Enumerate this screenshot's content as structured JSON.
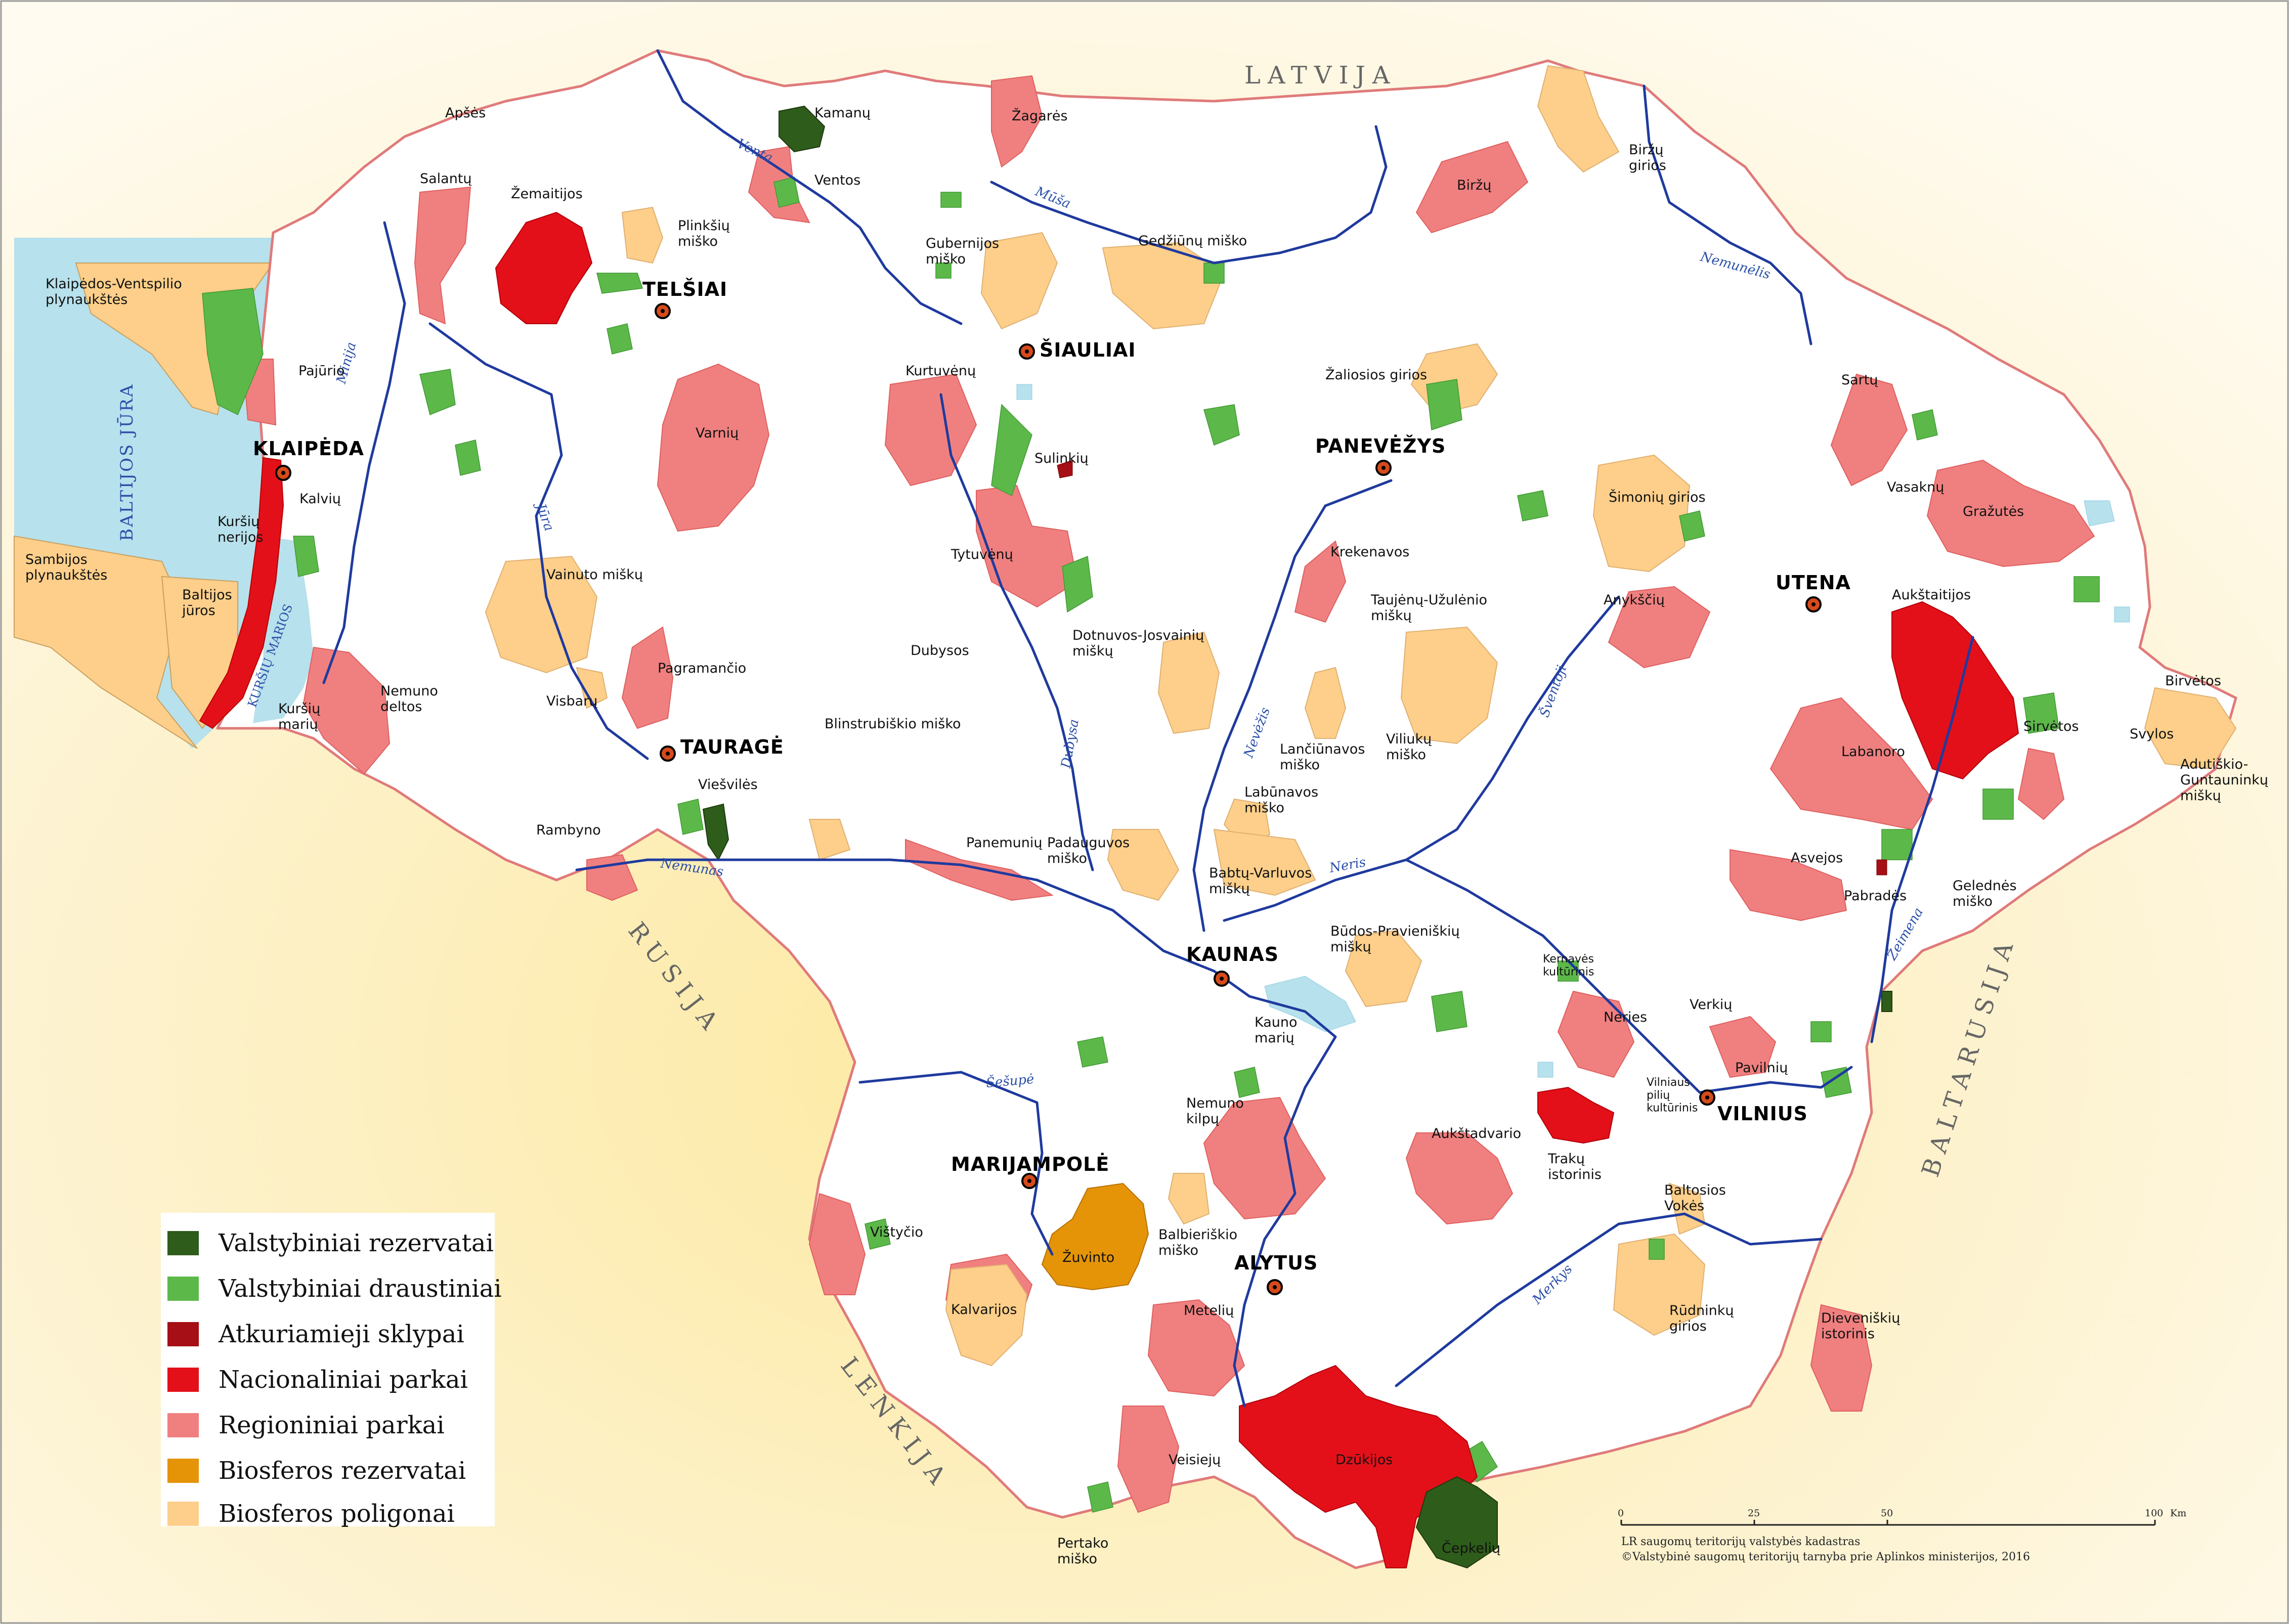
{
  "neighbors": {
    "latvija": "LATVIJA",
    "rusija": "RUSIJA",
    "baltarusija": "BALTARUSIJA",
    "lenkija": "LENKIJA"
  },
  "sea": {
    "baltijos_jura": "BALTIJOS JŪRA",
    "kursiu_marios": "KURŠIŲ MARIOS"
  },
  "cities": {
    "klaipeda": "KLAIPĖDA",
    "telsiai": "TELŠIAI",
    "siauliai": "ŠIAULIAI",
    "panevezys": "PANEVĖŽYS",
    "utena": "UTENA",
    "taurage": "TAURAGĖ",
    "kaunas": "KAUNAS",
    "marijampole": "MARIJAMPOLĖ",
    "alytus": "ALYTUS",
    "vilnius": "VILNIUS"
  },
  "rivers": {
    "venta": "Venta",
    "musa": "Mūša",
    "nemunelis": "Nemunėlis",
    "minija": "Minija",
    "jura": "Jūra",
    "nemunas": "Nemunas",
    "dubysa": "Dubysa",
    "nevezis": "Nevėžis",
    "neris": "Neris",
    "sventoji": "Šventoji",
    "zeimena": "Žeimena",
    "merkys": "Merkys",
    "sesupe": "Šešupė"
  },
  "areas": {
    "apses": "Apšės",
    "salantu": "Salantų",
    "zemaitijos": "Žemaitijos",
    "kamanu": "Kamanų",
    "ventos": "Ventos",
    "zagares": "Žagarės",
    "plinksiu": "Plinkšių\nmiško",
    "gubernijos": "Gubernijos\nmiško",
    "gedziunu": "Gedžiūnų miško",
    "birzu": "Biržų",
    "birzu_girios": "Biržų\ngirios",
    "klaipedos_ventspilio": "Klaipėdos-Ventspilio\nplynaukštės",
    "pajurio": "Pajūrio",
    "kurtuvenu": "Kurtuvėnų",
    "varniu": "Varnių",
    "zaliosios": "Žaliosios girios",
    "sartu": "Sartų",
    "sulinkiu": "Sulinkių",
    "simoniu": "Šimonių girios",
    "vasaknu": "Vasaknų",
    "grazutes": "Gražutės",
    "kalviu": "Kalvių",
    "kursiu_nerijos": "Kuršių\nnerijos",
    "sambijos": "Sambijos\nplynaukštės",
    "baltijos_juros": "Baltijos\njūros",
    "vainuto": "Vainuto miškų",
    "tytuvenu": "Tytuvėnų",
    "krekenavos": "Krekenavos",
    "aukstaitijos": "Aukštaitijos",
    "tauejnu": "Taujėnų-Užulėnio\nmiškų",
    "anyksciu": "Anykščių",
    "dotnuvos": "Dotnuvos-Josvainių\nmiškų",
    "pagramancio": "Pagramančio",
    "nemuno_deltos": "Nemuno\ndeltos",
    "dubysos": "Dubysos",
    "visbaru": "Visbarų",
    "blinstrubiskio": "Blinstrubiškio miško",
    "kursiu_mariu": "Kuršių\nmarių",
    "lanciunavos": "Lančiūnavos\nmiško",
    "viliuku": "Viliukų\nmiško",
    "birvetos": "Birvėtos",
    "sirvetos": "Sirvėtos",
    "svylos": "Svylos",
    "adutiskio": "Adutiškio-\nGuntauninkų\nmiškų",
    "labanoro": "Labanoro",
    "labunavos": "Labūnavos\nmiško",
    "vieviles": "Viešvilės",
    "rambyno": "Rambyno",
    "panemuniu": "Panemunių",
    "padauguvos": "Padauguvos\nmiško",
    "babtu": "Babtų-Varluvos\nmiškų",
    "asvejos": "Asvejos",
    "pabrades": "Pabradės",
    "gelednes": "Gelednės\nmiško",
    "budos": "Būdos-Pravieniškių\nmiškų",
    "kernaves": "Kernavės\nkultūrinis",
    "kauno_mariu": "Kauno\nmarių",
    "neries": "Neries",
    "verkiu": "Verkių",
    "pavilniu": "Pavilnių",
    "vilniaus_pilu": "Vilniaus\npilių\nkultūrinis",
    "nemuno_kilpu": "Nemuno\nkilpų",
    "aukstadvario": "Aukštadvario",
    "traku": "Trakų\nistorinis",
    "baltosios_vokes": "Baltosios\nVokės",
    "vistycio": "Vištyčio",
    "zuvinto": "Žuvinto",
    "balbieriskio": "Balbieriškio\nmiško",
    "kalvariju": "Kalvarijos",
    "meteliu": "Metelių",
    "rudninku": "Rūdninkų\ngirios",
    "dieveniskiu": "Dieveniškių\nistorinis",
    "veisieju": "Veisiejų",
    "dzukijos": "Dzūkijos",
    "pertako": "Pertako\nmiško",
    "cepkeliu": "Čepkelių"
  },
  "legend": [
    {
      "label": "Valstybiniai rezervatai",
      "color": "#2e5c1a"
    },
    {
      "label": "Valstybiniai draustiniai",
      "color": "#5db84a"
    },
    {
      "label": "Atkuriamieji sklypai",
      "color": "#a50f15"
    },
    {
      "label": "Nacionaliniai parkai",
      "color": "#e3101a"
    },
    {
      "label": "Regioniniai parkai",
      "color": "#f08080"
    },
    {
      "label": "Biosferos rezervatai",
      "color": "#e59408"
    },
    {
      "label": "Biosferos poligonai",
      "color": "#fdcf8a"
    }
  ],
  "scale": {
    "ticks": [
      "0",
      "25",
      "50",
      "100"
    ],
    "unit": "Km"
  },
  "credits": {
    "line1": "LR saugomų teritorijų valstybės kadastras",
    "line2": "©Valstybinė saugomų teritorijų tarnyba prie Aplinkos ministerijos, 2016"
  },
  "colors": {
    "background": "#fdf1cc",
    "border": "#e07a7a",
    "sea": "#b7e1ec",
    "land": "#ffffff",
    "river": "#1f3a9e",
    "national": "#e3101a",
    "regional": "#f08080",
    "reserve": "#2e5c1a",
    "reserve_area": "#5db84a",
    "biosphere": "#e59408",
    "poligon": "#fdcf8a"
  }
}
